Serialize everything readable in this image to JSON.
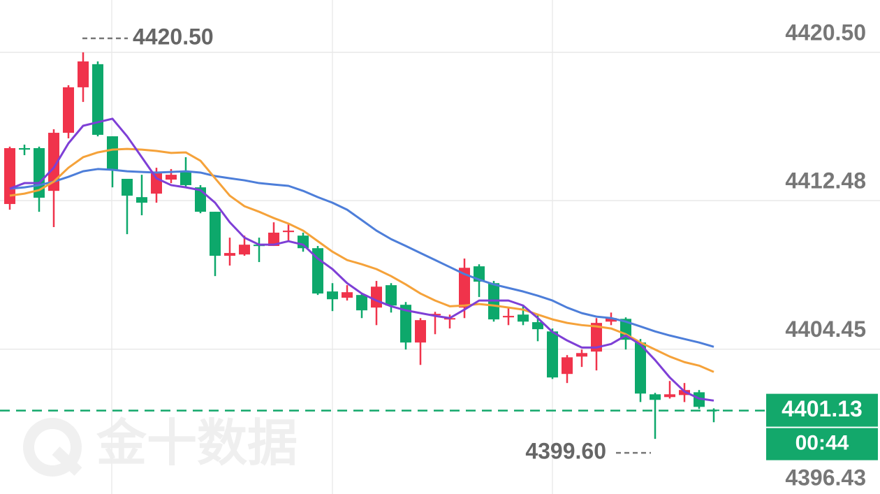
{
  "chart_data": {
    "type": "candlestick",
    "watermark": "金十数据",
    "ylim": [
      4396.43,
      4423.33
    ],
    "yticks": [
      {
        "value": 4420.5,
        "label": "4420.50"
      },
      4412.48,
      4404.45,
      4396.43
    ],
    "grid": true,
    "up_color": "#f0334b",
    "down_color": "#0da86b",
    "open": [
      4412.3,
      4415.32,
      4415.32,
      4413.01,
      4416.15,
      4418.61,
      4419.86,
      4415.96,
      4413.66,
      4412.67,
      4412.86,
      4413.62,
      4414.03,
      4413.2,
      4411.88,
      4409.5,
      4409.57,
      4410.1,
      4410.03,
      4410.78,
      4410.59,
      4409.91,
      4407.57,
      4407.23,
      4407.38,
      4406.7,
      4407.91,
      4406.85,
      4404.81,
      4406.28,
      4406.06,
      4406.7,
      4408.93,
      4408.02,
      4406.17,
      4406.32,
      4405.91,
      4405.41,
      4403.11,
      4404.05,
      4404.32,
      4405.94,
      4406.09,
      4404.81,
      4402.01,
      4401.86,
      4401.97,
      4402.12,
      4401.18
    ],
    "high": [
      4415.4,
      4415.51,
      4415.4,
      4416.34,
      4418.72,
      4420.5,
      4420.01,
      4415.96,
      4413.66,
      4413.88,
      4414.26,
      4414.19,
      4414.83,
      4413.32,
      4411.88,
      4410.48,
      4410.59,
      4410.48,
      4411.31,
      4411.24,
      4410.75,
      4410.03,
      4408.02,
      4407.91,
      4407.46,
      4408.14,
      4408.02,
      4407.0,
      4406.13,
      4406.47,
      4406.32,
      4409.35,
      4409.04,
      4408.14,
      4406.7,
      4406.85,
      4406.32,
      4405.57,
      4404.13,
      4404.43,
      4406.13,
      4406.43,
      4406.17,
      4405.0,
      4402.09,
      4402.73,
      4402.62,
      4402.24,
      4401.25
    ],
    "low": [
      4411.99,
      4414.94,
      4411.88,
      4411.05,
      4415.85,
      4417.82,
      4415.96,
      4413.2,
      4410.67,
      4411.69,
      4412.37,
      4413.43,
      4413.2,
      4411.8,
      4408.4,
      4408.97,
      4409.5,
      4409.16,
      4410.03,
      4410.29,
      4409.72,
      4407.38,
      4406.51,
      4407.08,
      4406.13,
      4405.75,
      4406.43,
      4404.43,
      4403.6,
      4405.26,
      4405.57,
      4406.13,
      4407.27,
      4405.94,
      4405.75,
      4405.75,
      4404.88,
      4402.84,
      4402.62,
      4403.49,
      4403.3,
      4405.75,
      4404.43,
      4401.59,
      4399.6,
      4401.78,
      4401.59,
      4401.22,
      4400.5
    ],
    "close": [
      4415.32,
      4415.24,
      4412.64,
      4416.15,
      4418.61,
      4420.01,
      4416.04,
      4414.15,
      4412.75,
      4412.37,
      4413.96,
      4413.88,
      4413.32,
      4411.88,
      4409.5,
      4409.65,
      4410.1,
      4410.03,
      4410.75,
      4410.86,
      4409.91,
      4407.46,
      4407.15,
      4407.53,
      4406.55,
      4407.83,
      4406.81,
      4404.81,
      4406.02,
      4406.36,
      4406.13,
      4408.85,
      4408.1,
      4406.06,
      4406.25,
      4405.94,
      4405.53,
      4402.92,
      4404.01,
      4404.24,
      4405.87,
      4406.13,
      4404.96,
      4402.05,
      4401.71,
      4402.01,
      4402.24,
      4401.33,
      4401.13
    ],
    "lines": [
      {
        "color": "#4d7ed9",
        "values": [
          4413.13,
          4413.2,
          4413.32,
          4413.51,
          4413.77,
          4414.07,
          4414.19,
          4414.15,
          4414.07,
          4414.03,
          4414.0,
          4414.03,
          4414.07,
          4414.0,
          4413.81,
          4413.69,
          4413.58,
          4413.43,
          4413.35,
          4413.28,
          4413.01,
          4412.67,
          4412.37,
          4411.99,
          4411.43,
          4410.86,
          4410.4,
          4410.03,
          4409.65,
          4409.27,
          4408.89,
          4408.51,
          4408.21,
          4407.95,
          4407.76,
          4407.57,
          4407.34,
          4407.08,
          4406.7,
          4406.4,
          4406.21,
          4406.13,
          4405.94,
          4405.68,
          4405.41,
          4405.19,
          4405.0,
          4404.81,
          4404.58
        ]
      },
      {
        "color": "#f5a23a",
        "values": [
          4412.75,
          4412.86,
          4413.05,
          4413.51,
          4414.26,
          4414.83,
          4415.09,
          4415.24,
          4415.28,
          4415.24,
          4415.17,
          4415.06,
          4415.09,
          4414.64,
          4413.69,
          4412.75,
          4412.18,
          4411.88,
          4411.54,
          4411.24,
          4410.86,
          4410.29,
          4409.72,
          4409.27,
          4409.04,
          4408.78,
          4408.4,
          4407.95,
          4407.46,
          4407.08,
          4406.77,
          4406.81,
          4406.89,
          4406.81,
          4406.7,
          4406.59,
          4406.32,
          4406.06,
          4405.87,
          4405.75,
          4405.68,
          4405.57,
          4405.26,
          4404.81,
          4404.43,
          4404.05,
          4403.75,
          4403.56,
          4403.22
        ]
      },
      {
        "color": "#7e3fd6",
        "values": [
          4413.13,
          4413.43,
          4413.43,
          4414.26,
          4415.58,
          4416.53,
          4416.72,
          4416.91,
          4415.96,
          4414.83,
          4413.69,
          4413.32,
          4413.2,
          4413.05,
          4412.37,
          4411.31,
          4410.48,
          4410.1,
          4410.1,
          4410.29,
          4410.1,
          4409.35,
          4408.78,
          4408.02,
          4407.46,
          4407.08,
          4406.77,
          4406.55,
          4406.4,
          4406.25,
          4406.13,
          4406.59,
          4407.08,
          4407.08,
          4407.08,
          4406.81,
          4406.13,
          4405.38,
          4404.92,
          4404.54,
          4404.54,
          4404.73,
          4405.19,
          4404.7,
          4403.86,
          4402.92,
          4402.16,
          4401.78,
          4401.67
        ]
      }
    ],
    "annotations": [
      {
        "label": "4420.50",
        "value": 4420.5
      },
      {
        "label": "4399.60",
        "value": 4399.6
      }
    ],
    "current_price": {
      "label": "4401.13",
      "value": 4401.13,
      "countdown": "00:44",
      "color": "#13a86b"
    }
  }
}
